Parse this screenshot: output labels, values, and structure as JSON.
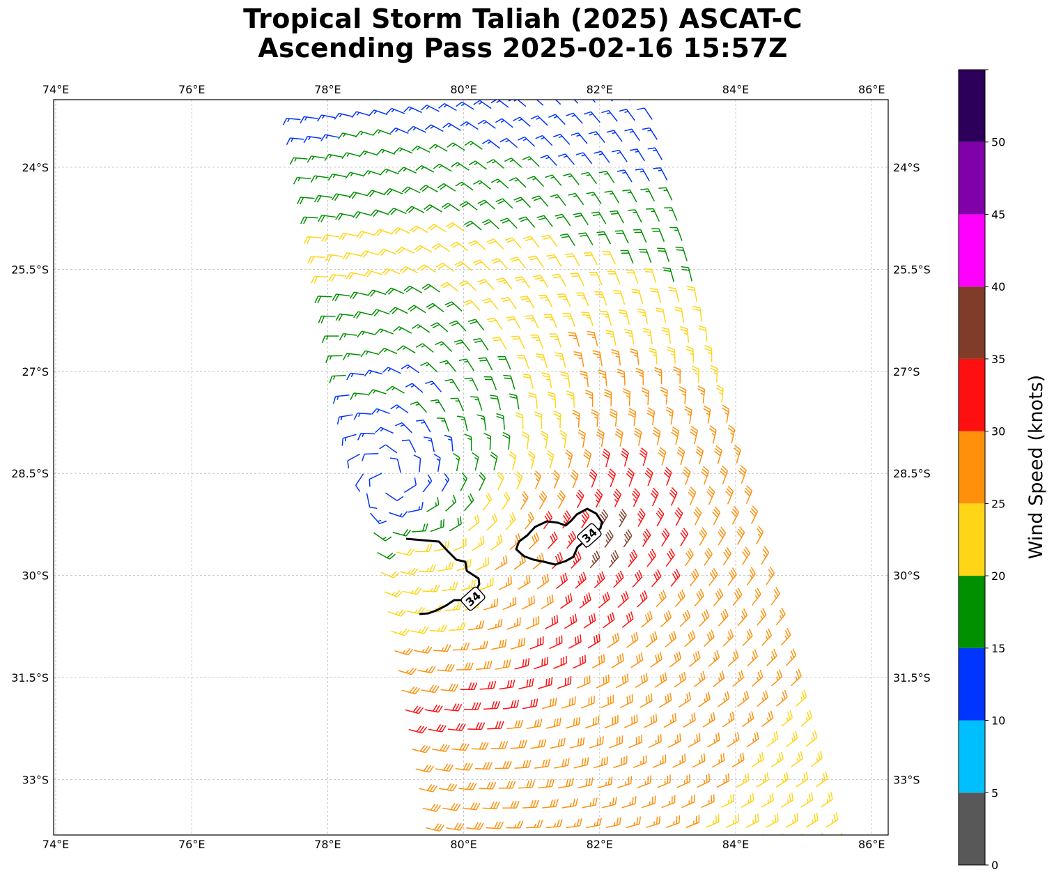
{
  "title": {
    "line1": "Tropical Storm Taliah (2025) ASCAT-C",
    "line2": "Ascending Pass 2025-02-16 15:57Z"
  },
  "map": {
    "lon_range": [
      74,
      86.2
    ],
    "lat_range": [
      -34.0,
      -23.0
    ],
    "lon_ticks": [
      "74°E",
      "76°E",
      "78°E",
      "80°E",
      "82°E",
      "84°E",
      "86°E"
    ],
    "lat_ticks": [
      "24°S",
      "25.5°S",
      "27°S",
      "28.5°S",
      "30°S",
      "31.5°S",
      "33°S"
    ],
    "gridlines": true,
    "storm_center": {
      "lon": 78.9,
      "lat": -28.6
    },
    "swath_corners": [
      [
        77.6,
        -23.3
      ],
      [
        82.7,
        -23.0
      ],
      [
        85.4,
        -34.0
      ],
      [
        79.5,
        -34.0
      ]
    ]
  },
  "wind_barbs": {
    "units": "knots",
    "contour_level": "34",
    "contour_labels": [
      "34",
      "34"
    ],
    "contour_color": "#000000"
  },
  "colorbar": {
    "label": "Wind Speed (knots)",
    "ticks": [
      "0",
      "5",
      "10",
      "15",
      "20",
      "25",
      "30",
      "35",
      "40",
      "45",
      "50"
    ],
    "bins": [
      {
        "min": 0,
        "max": 5,
        "color": "#585858"
      },
      {
        "min": 5,
        "max": 10,
        "color": "#00bfff"
      },
      {
        "min": 10,
        "max": 15,
        "color": "#0034ff"
      },
      {
        "min": 15,
        "max": 20,
        "color": "#009000"
      },
      {
        "min": 20,
        "max": 25,
        "color": "#ffd517"
      },
      {
        "min": 25,
        "max": 30,
        "color": "#ff900b"
      },
      {
        "min": 30,
        "max": 35,
        "color": "#ff1010"
      },
      {
        "min": 35,
        "max": 40,
        "color": "#803c28"
      },
      {
        "min": 40,
        "max": 45,
        "color": "#ff00ff"
      },
      {
        "min": 45,
        "max": 50,
        "color": "#8000aa"
      },
      {
        "min": 50,
        "max": 55,
        "color": "#2c005a"
      }
    ]
  }
}
